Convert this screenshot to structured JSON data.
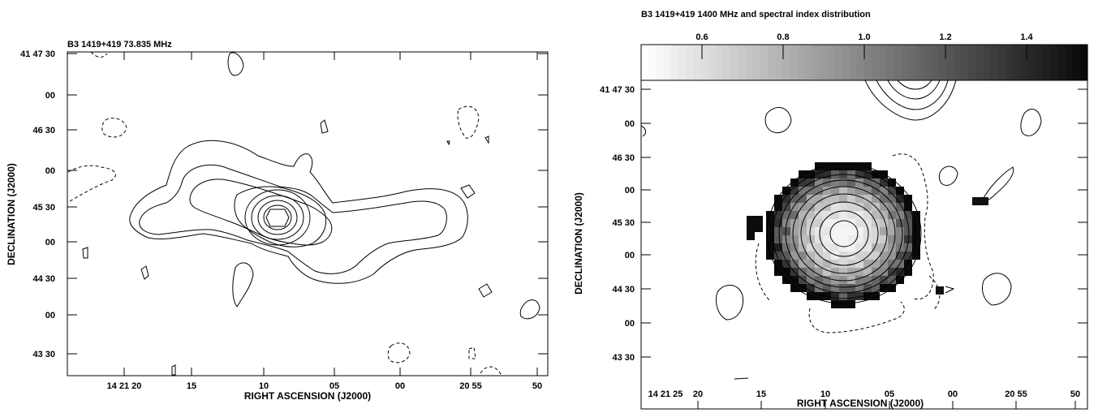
{
  "chart_data": [
    {
      "type": "contour",
      "title": "B3 1419+419  73.835 MHz",
      "xlabel": "RIGHT ASCENSION (J2000)",
      "ylabel": "DECLINATION (J2000)",
      "x_ticks": [
        "14 21 20",
        "15",
        "10",
        "05",
        "00",
        "20 55",
        "50"
      ],
      "y_ticks": [
        "41 47 30",
        "00",
        "46 30",
        "00",
        "45 30",
        "00",
        "44 30",
        "00",
        "43 30"
      ],
      "grid": false
    },
    {
      "type": "heatmap",
      "title": "B3 1419+419  1400 MHz and spectral index distribution",
      "xlabel": "RIGHT ASCENSION (J2000)",
      "ylabel": "DECLINATION (J2000)",
      "x_ticks": [
        "14 21 25",
        "20",
        "15",
        "10",
        "05",
        "00",
        "20 55",
        "50"
      ],
      "y_ticks": [
        "41 47 30",
        "00",
        "46 30",
        "00",
        "45 30",
        "00",
        "44 30",
        "00",
        "43 30"
      ],
      "colorbar": {
        "range": [
          0.45,
          1.55
        ],
        "ticks": [
          "0.6",
          "0.8",
          "1.0",
          "1.2",
          "1.4"
        ],
        "tick_values": [
          0.6,
          0.8,
          1.0,
          1.2,
          1.4
        ],
        "palette": "white-to-black"
      },
      "grid": false
    }
  ]
}
